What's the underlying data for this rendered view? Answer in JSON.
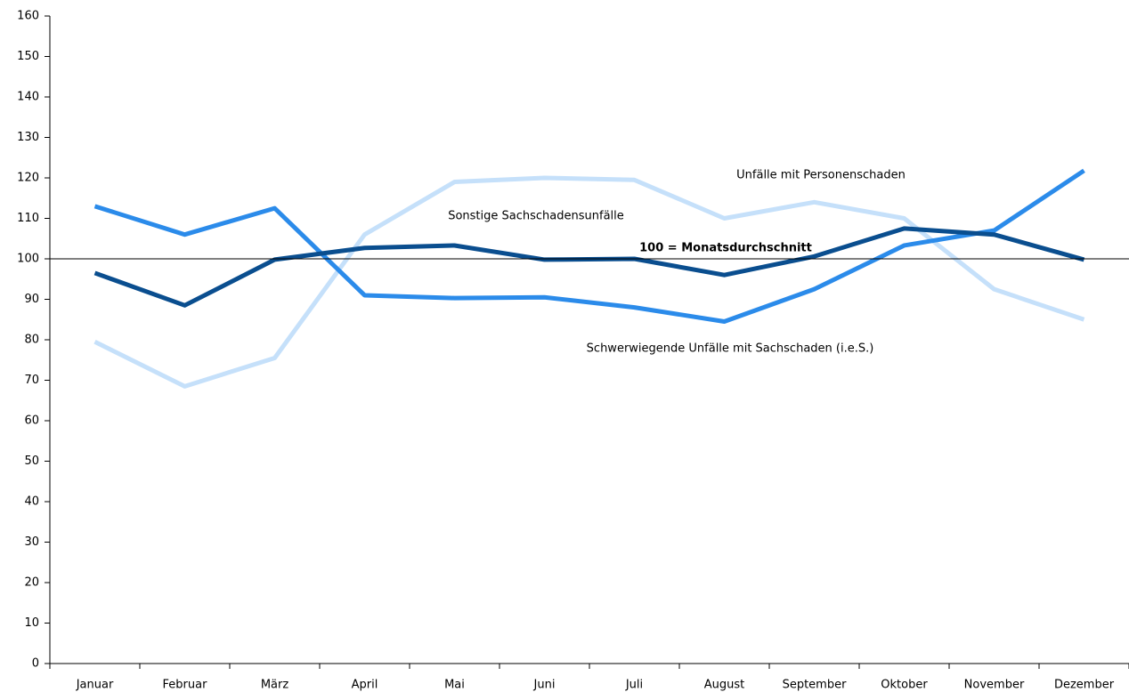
{
  "chart_data": {
    "type": "line",
    "categories": [
      "Januar",
      "Februar",
      "März",
      "April",
      "Mai",
      "Juni",
      "Juli",
      "August",
      "September",
      "Oktober",
      "November",
      "Dezember"
    ],
    "series": [
      {
        "name": "Unfälle mit Personenschaden",
        "color": "#c5e0fa",
        "values": [
          79.5,
          68.5,
          75.5,
          106,
          119,
          120,
          119.5,
          110,
          114,
          110,
          92.5,
          85
        ]
      },
      {
        "name": "Schwerwiegende Unfälle mit Sachschaden (i.e.S.)",
        "color": "#2b8bea",
        "values": [
          113,
          106,
          112.5,
          91,
          90.3,
          90.5,
          88,
          84.5,
          92.5,
          103.3,
          107,
          121.8
        ]
      },
      {
        "name": "Sonstige Sachschadensunfälle",
        "color": "#0a4e8f",
        "values": [
          96.5,
          88.5,
          99.8,
          102.7,
          103.3,
          99.8,
          100,
          96,
          100.6,
          107.5,
          106,
          99.8
        ]
      }
    ],
    "reference_line": {
      "value": 100,
      "label": "100 = Monatsdurchschnitt"
    },
    "ylim": [
      0,
      160
    ],
    "yticks": [
      0,
      10,
      20,
      30,
      40,
      50,
      60,
      70,
      80,
      90,
      100,
      110,
      120,
      130,
      140,
      150,
      160
    ]
  }
}
